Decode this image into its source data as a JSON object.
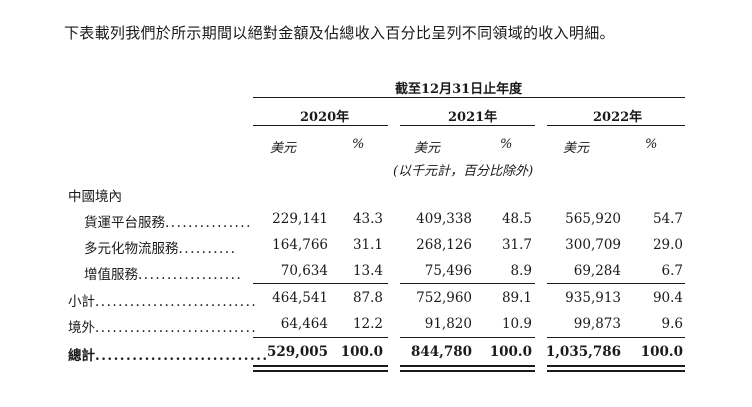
{
  "intro": "下表載列我們於所示期間以絕對金額及佔總收入百分比呈列不同領域的收入明細。",
  "header": {
    "period": "截至12月31日止年度",
    "years": [
      "2020年",
      "2021年",
      "2022年"
    ],
    "col_usd": "美元",
    "col_pct": "%",
    "unit_note": "(以千元計，百分比除外)"
  },
  "section_label": "中國境內",
  "rows": [
    {
      "label": "貨運平台服務",
      "dots": "...............",
      "v2020": "229,141",
      "p2020": "43.3",
      "v2021": "409,338",
      "p2021": "48.5",
      "v2022": "565,920",
      "p2022": "54.7"
    },
    {
      "label": "多元化物流服務",
      "dots": "..........",
      "v2020": "164,766",
      "p2020": "31.1",
      "v2021": "268,126",
      "p2021": "31.7",
      "v2022": "300,709",
      "p2022": "29.0"
    },
    {
      "label": "增值服務",
      "dots": "..................",
      "v2020": "70,634",
      "p2020": "13.4",
      "v2021": "75,496",
      "p2021": "8.9",
      "v2022": "69,284",
      "p2022": "6.7"
    },
    {
      "label": "小計",
      "dots": "............................",
      "v2020": "464,541",
      "p2020": "87.8",
      "v2021": "752,960",
      "p2021": "89.1",
      "v2022": "935,913",
      "p2022": "90.4"
    },
    {
      "label": "境外",
      "dots": "............................",
      "v2020": "64,464",
      "p2020": "12.2",
      "v2021": "91,820",
      "p2021": "10.9",
      "v2022": "99,873",
      "p2022": "9.6"
    },
    {
      "label": "總計",
      "dots": "............................",
      "v2020": "529,005",
      "p2020": "100.0",
      "v2021": "844,780",
      "p2021": "100.0",
      "v2022": "1,035,786",
      "p2022": "100.0"
    }
  ]
}
